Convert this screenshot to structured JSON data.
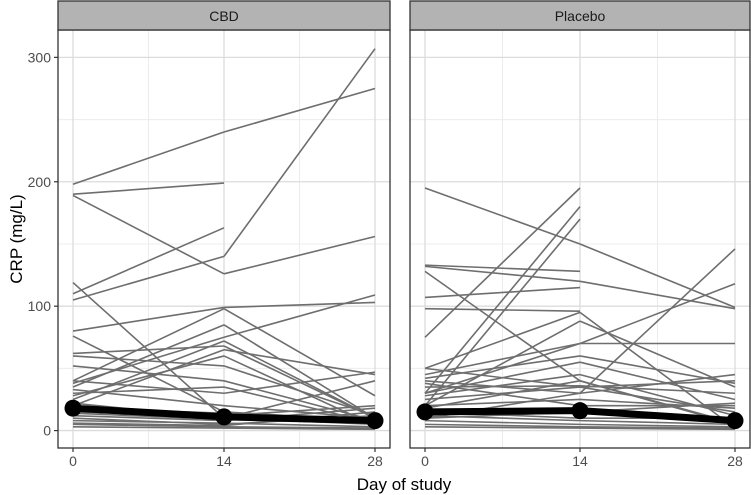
{
  "chart_data": {
    "type": "line",
    "xlabel": "Day of study",
    "ylabel": "CRP (mg/L)",
    "x": [
      0,
      14,
      28
    ],
    "x_ticks": [
      "0",
      "14",
      "28"
    ],
    "y_ticks": [
      "0",
      "100",
      "200",
      "300"
    ],
    "ylim": [
      -14,
      322
    ],
    "grid": true,
    "colors": {
      "individual": "#6e6e6e",
      "mean": "#000000",
      "strip": "#b3b3b3",
      "grid": "#dcdcdc"
    },
    "panels": [
      {
        "title": "CBD",
        "mean": [
          18,
          11,
          8
        ],
        "subjects": [
          [
            198,
            240,
            275
          ],
          [
            190,
            199,
            null
          ],
          [
            189,
            126,
            156
          ],
          [
            110,
            163,
            null
          ],
          [
            105,
            140,
            307
          ],
          [
            119,
            10,
            5
          ],
          [
            80,
            99,
            103
          ],
          [
            76,
            15,
            8
          ],
          [
            62,
            68,
            10
          ],
          [
            60,
            52,
            12
          ],
          [
            52,
            40,
            8
          ],
          [
            40,
            98,
            28
          ],
          [
            38,
            75,
            109
          ],
          [
            35,
            85,
            10
          ],
          [
            30,
            35,
            6
          ],
          [
            40,
            30,
            47
          ],
          [
            25,
            72,
            10
          ],
          [
            20,
            65,
            45
          ],
          [
            28,
            60,
            4
          ],
          [
            22,
            10,
            40
          ],
          [
            15,
            12,
            20
          ],
          [
            12,
            8,
            18
          ],
          [
            10,
            5,
            12
          ],
          [
            8,
            6,
            3
          ],
          [
            5,
            3,
            2
          ],
          [
            3,
            2,
            1
          ],
          [
            6,
            4,
            15
          ],
          [
            14,
            9,
            6
          ],
          [
            33,
            20,
            10
          ],
          [
            18,
            14,
            5
          ]
        ]
      },
      {
        "title": "Placebo",
        "mean": [
          15,
          16,
          8
        ],
        "subjects": [
          [
            195,
            150,
            99
          ],
          [
            133,
            128,
            null
          ],
          [
            132,
            120,
            98
          ],
          [
            128,
            40,
            5
          ],
          [
            107,
            115,
            null
          ],
          [
            98,
            96,
            null
          ],
          [
            75,
            195,
            null
          ],
          [
            30,
            180,
            null
          ],
          [
            20,
            170,
            null
          ],
          [
            50,
            95,
            2
          ],
          [
            20,
            88,
            35
          ],
          [
            10,
            30,
            146
          ],
          [
            30,
            70,
            118
          ],
          [
            45,
            70,
            70
          ],
          [
            42,
            60,
            38
          ],
          [
            40,
            30,
            45
          ],
          [
            38,
            20,
            20
          ],
          [
            35,
            36,
            30
          ],
          [
            30,
            55,
            25
          ],
          [
            25,
            35,
            40
          ],
          [
            20,
            25,
            18
          ],
          [
            15,
            10,
            10
          ],
          [
            12,
            8,
            5
          ],
          [
            8,
            5,
            3
          ],
          [
            5,
            3,
            2
          ],
          [
            3,
            2,
            1
          ],
          [
            50,
            35,
            15
          ],
          [
            28,
            45,
            12
          ],
          [
            18,
            40,
            6
          ],
          [
            10,
            15,
            22
          ]
        ]
      }
    ]
  }
}
